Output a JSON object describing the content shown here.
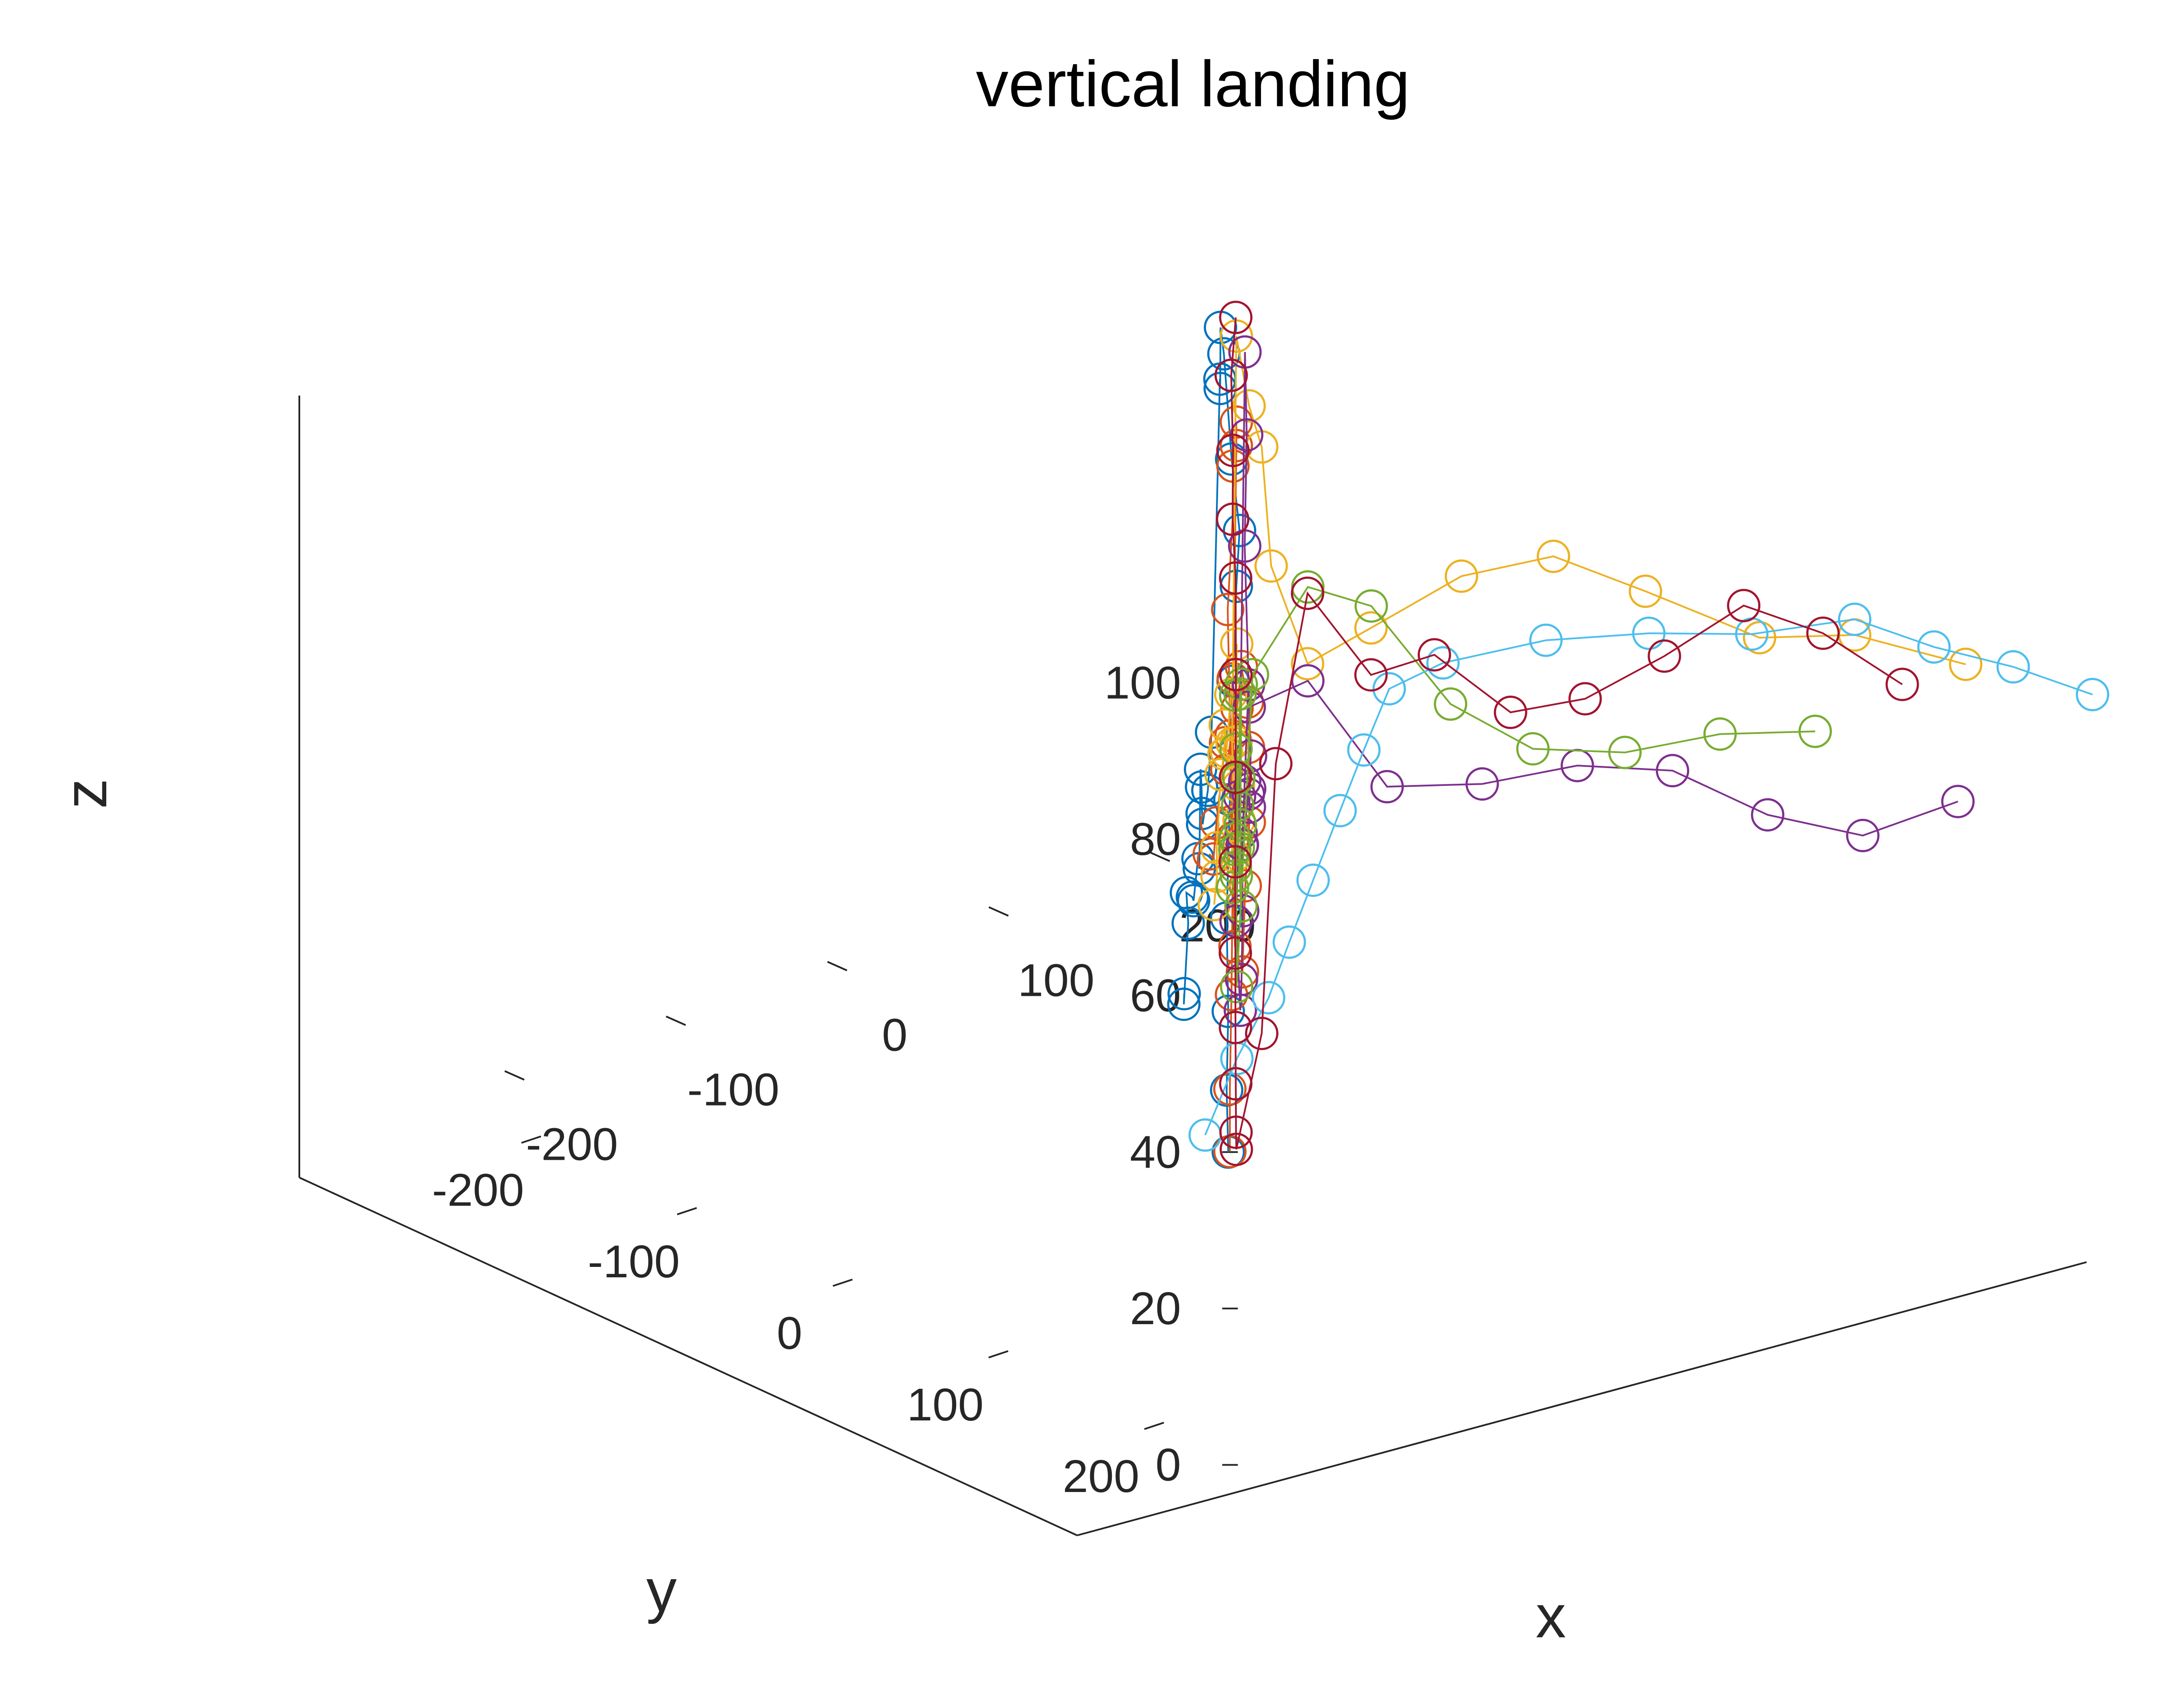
{
  "chart_data": {
    "type": "scatter3d-line",
    "title": "vertical landing",
    "xlabel": "x",
    "ylabel": "y",
    "zlabel": "z",
    "xlim": [
      -250,
      250
    ],
    "ylim": [
      -250,
      250
    ],
    "zlim": [
      0,
      100
    ],
    "x_ticks": [
      -200,
      -100,
      0,
      100,
      200
    ],
    "y_ticks": [
      -200,
      -100,
      0,
      100,
      200
    ],
    "z_ticks": [
      0,
      20,
      40,
      60,
      80,
      100
    ],
    "x_tick_labels": [
      "-200",
      "-100",
      "0",
      "100",
      "200"
    ],
    "y_tick_labels": [
      "-200",
      "-100",
      "0",
      "100",
      "200"
    ],
    "z_tick_labels": [
      "0",
      "20",
      "40",
      "60",
      "80",
      "100"
    ],
    "grid": false,
    "marker": "circle",
    "series": [
      {
        "color": "#0072BD",
        "points": [
          [
            -262,
            238,
            60
          ],
          [
            -240,
            215,
            55
          ],
          [
            -218,
            195,
            62
          ],
          [
            -195,
            170,
            62
          ],
          [
            -172,
            150,
            58
          ],
          [
            -150,
            128,
            54
          ],
          [
            -128,
            108,
            56
          ],
          [
            -105,
            85,
            51
          ],
          [
            -82,
            62,
            60
          ],
          [
            -65,
            45,
            55
          ],
          [
            -55,
            35,
            50
          ],
          [
            -45,
            25,
            47
          ],
          [
            -35,
            18,
            50
          ],
          [
            -25,
            10,
            56
          ],
          [
            -15,
            5,
            100
          ],
          [
            -10,
            0,
            98
          ],
          [
            -5,
            -5,
            105
          ],
          [
            0,
            -8,
            101
          ],
          [
            0,
            -3,
            88
          ],
          [
            2,
            0,
            79
          ],
          [
            0,
            0,
            72
          ],
          [
            -2,
            0,
            60
          ],
          [
            -4,
            0,
            45
          ],
          [
            -6,
            0,
            30
          ],
          [
            -5,
            0,
            18
          ],
          [
            -6,
            0,
            8
          ],
          [
            -5,
            0,
            0
          ]
        ]
      },
      {
        "color": "#D95319",
        "points": [
          [
            -260,
            252,
            79
          ],
          [
            -238,
            232,
            75
          ],
          [
            -215,
            210,
            76
          ],
          [
            -192,
            192,
            83
          ],
          [
            -170,
            170,
            76
          ],
          [
            -148,
            150,
            77
          ],
          [
            -125,
            130,
            77
          ],
          [
            -103,
            110,
            79
          ],
          [
            -80,
            90,
            71
          ],
          [
            -60,
            70,
            62
          ],
          [
            -45,
            55,
            50
          ],
          [
            -35,
            42,
            40
          ],
          [
            -30,
            35,
            28
          ],
          [
            -25,
            25,
            30
          ],
          [
            -20,
            18,
            45
          ],
          [
            -15,
            10,
            71
          ],
          [
            -10,
            8,
            82
          ],
          [
            -5,
            3,
            88
          ],
          [
            0,
            0,
            93
          ],
          [
            0,
            0,
            90
          ],
          [
            0,
            -2,
            60
          ],
          [
            -2,
            0,
            40
          ],
          [
            -3,
            0,
            20
          ],
          [
            -4,
            0,
            8
          ],
          [
            -4,
            0,
            0
          ]
        ]
      },
      {
        "color": "#EDB120",
        "points": [
          [
            -255,
            250,
            72
          ],
          [
            -232,
            228,
            72
          ],
          [
            -210,
            205,
            72
          ],
          [
            -188,
            185,
            78
          ],
          [
            -165,
            163,
            77
          ],
          [
            -142,
            140,
            77
          ],
          [
            -120,
            118,
            70
          ],
          [
            -98,
            98,
            74
          ],
          [
            -75,
            78,
            77
          ],
          [
            -60,
            62,
            62
          ],
          [
            -45,
            48,
            54
          ],
          [
            -35,
            38,
            48
          ],
          [
            -28,
            28,
            42
          ],
          [
            -20,
            18,
            55
          ],
          [
            0,
            0,
            104
          ],
          [
            5,
            3,
            95
          ],
          [
            8,
            8,
            90
          ],
          [
            10,
            12,
            75
          ],
          [
            20,
            25,
            63
          ],
          [
            40,
            45,
            68
          ],
          [
            70,
            72,
            75
          ],
          [
            100,
            100,
            78
          ],
          [
            130,
            128,
            74
          ],
          [
            165,
            165,
            69
          ],
          [
            195,
            195,
            70
          ],
          [
            230,
            230,
            67
          ]
        ]
      },
      {
        "color": "#7E2F8E",
        "points": [
          [
            -190,
            200,
            72
          ],
          [
            -168,
            178,
            67
          ],
          [
            -145,
            158,
            70
          ],
          [
            -122,
            135,
            67
          ],
          [
            -100,
            112,
            61
          ],
          [
            -78,
            90,
            64
          ],
          [
            -60,
            70,
            70
          ],
          [
            -45,
            52,
            55
          ],
          [
            -35,
            40,
            45
          ],
          [
            -25,
            30,
            35
          ],
          [
            -18,
            22,
            25
          ],
          [
            -12,
            15,
            20
          ],
          [
            -5,
            5,
            30
          ],
          [
            2,
            0,
            45
          ],
          [
            15,
            -10,
            100
          ],
          [
            18,
            -12,
            89
          ],
          [
            10,
            -5,
            76
          ],
          [
            8,
            0,
            56
          ],
          [
            25,
            20,
            60
          ],
          [
            50,
            45,
            47
          ],
          [
            80,
            75,
            48
          ],
          [
            110,
            105,
            51
          ],
          [
            140,
            135,
            51
          ],
          [
            170,
            165,
            46
          ],
          [
            200,
            195,
            44
          ],
          [
            230,
            225,
            49
          ]
        ]
      },
      {
        "color": "#77AC30",
        "points": [
          [
            -205,
            210,
            67
          ],
          [
            -182,
            188,
            66
          ],
          [
            -160,
            165,
            66
          ],
          [
            -138,
            142,
            61
          ],
          [
            -115,
            120,
            63
          ],
          [
            -93,
            98,
            63
          ],
          [
            -70,
            75,
            70
          ],
          [
            -50,
            55,
            68
          ],
          [
            -38,
            42,
            48
          ],
          [
            -28,
            32,
            36
          ],
          [
            -20,
            22,
            42
          ],
          [
            -12,
            12,
            60
          ],
          [
            -5,
            5,
            52
          ],
          [
            0,
            0,
            35
          ],
          [
            5,
            -5,
            20
          ],
          [
            10,
            0,
            60
          ],
          [
            25,
            20,
            72
          ],
          [
            45,
            40,
            70
          ],
          [
            70,
            65,
            58
          ],
          [
            95,
            92,
            53
          ],
          [
            125,
            120,
            53
          ],
          [
            155,
            150,
            56
          ],
          [
            185,
            180,
            57
          ]
        ]
      },
      {
        "color": "#4DBEEE",
        "points": [
          [
            0,
            -20,
            0
          ],
          [
            10,
            -10,
            10
          ],
          [
            20,
            0,
            18
          ],
          [
            28,
            5,
            25
          ],
          [
            36,
            12,
            33
          ],
          [
            45,
            20,
            42
          ],
          [
            52,
            28,
            50
          ],
          [
            60,
            36,
            58
          ],
          [
            75,
            55,
            62
          ],
          [
            105,
            90,
            66
          ],
          [
            135,
            125,
            68
          ],
          [
            165,
            160,
            69
          ],
          [
            195,
            195,
            72
          ],
          [
            220,
            220,
            69
          ],
          [
            245,
            245,
            67
          ],
          [
            270,
            270,
            64
          ]
        ]
      },
      {
        "color": "#A2142F",
        "points": [
          [
            -10,
            10,
            108
          ],
          [
            -8,
            5,
            100
          ],
          [
            -5,
            3,
            90
          ],
          [
            -10,
            8,
            82
          ],
          [
            -12,
            12,
            75
          ],
          [
            -8,
            8,
            62
          ],
          [
            -15,
            15,
            50
          ],
          [
            -20,
            20,
            40
          ],
          [
            -18,
            18,
            28
          ],
          [
            -15,
            15,
            18
          ],
          [
            -10,
            10,
            10
          ],
          [
            -5,
            5,
            3
          ],
          [
            0,
            0,
            0
          ],
          [
            8,
            8,
            15
          ],
          [
            10,
            15,
            50
          ],
          [
            20,
            25,
            72
          ],
          [
            40,
            45,
            62
          ],
          [
            60,
            65,
            65
          ],
          [
            85,
            88,
            58
          ],
          [
            110,
            110,
            60
          ],
          [
            135,
            135,
            66
          ],
          [
            160,
            160,
            73
          ],
          [
            185,
            185,
            70
          ],
          [
            210,
            210,
            64
          ]
        ]
      }
    ]
  }
}
